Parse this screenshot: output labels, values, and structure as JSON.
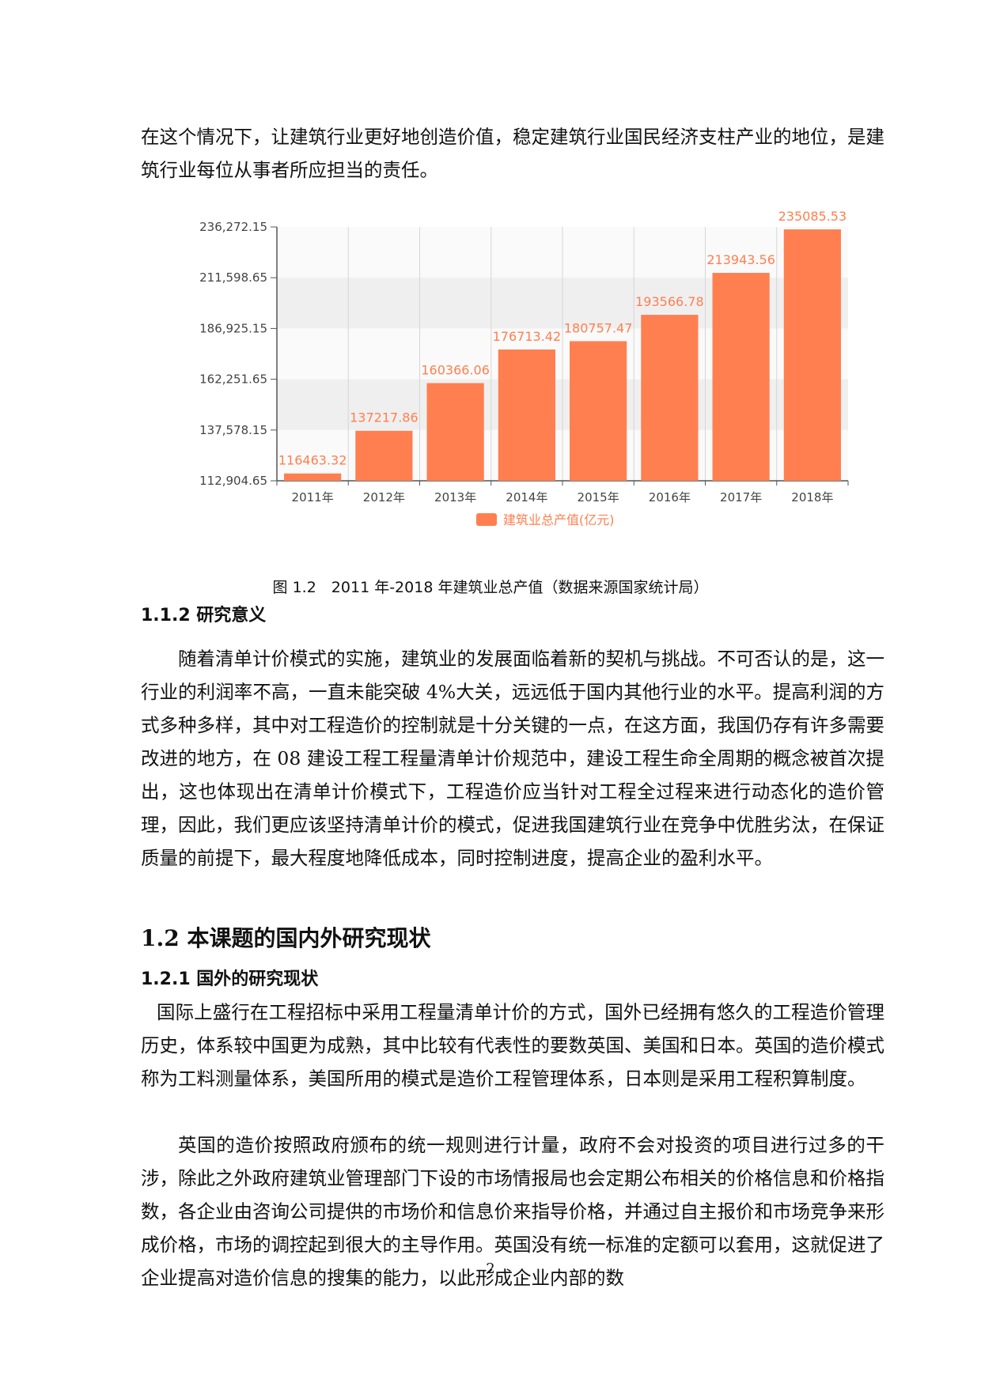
{
  "intro_paragraph": "在这个情况下，让建筑行业更好地创造价值，稳定建筑行业国民经济支柱产业的地位，是建筑行业每位从事者所应担当的责任。",
  "figure_caption": "图 1.2　2011 年-2018 年建筑业总产值（数据来源国家统计局）",
  "section_112": {
    "heading": "1.1.2 研究意义",
    "body": "随着清单计价模式的实施，建筑业的发展面临着新的契机与挑战。不可否认的是，这一行业的利润率不高，一直未能突破 4%大关，远远低于国内其他行业的水平。提高利润的方式多种多样，其中对工程造价的控制就是十分关键的一点，在这方面，我国仍存有许多需要改进的地方，在 08 建设工程工程量清单计价规范中，建设工程生命全周期的概念被首次提出，这也体现出在清单计价模式下，工程造价应当针对工程全过程来进行动态化的造价管理，因此，我们更应该坚持清单计价的模式，促进我国建筑行业在竞争中优胜劣汰，在保证质量的前提下，最大程度地降低成本，同时控制进度，提高企业的盈利水平。"
  },
  "section_12": {
    "heading": "1.2 本课题的国内外研究现状"
  },
  "section_121": {
    "heading": "1.2.1 国外的研究现状",
    "para1": "国际上盛行在工程招标中采用工程量清单计价的方式，国外已经拥有悠久的工程造价管理历史，体系较中国更为成熟，其中比较有代表性的要数英国、美国和日本。英国的造价模式称为工料测量体系，美国所用的模式是造价工程管理体系，日本则是采用工程积算制度。",
    "para2": "英国的造价按照政府颁布的统一规则进行计量，政府不会对投资的项目进行过多的干涉，除此之外政府建筑业管理部门下设的市场情报局也会定期公布相关的价格信息和价格指数，各企业由咨询公司提供的市场价和信息价来指导价格，并通过自主报价和市场竞争来形成价格，市场的调控起到很大的主导作用。英国没有统一标准的定额可以套用，这就促进了企业提高对造价信息的搜集的能力，以此形成企业内部的数"
  },
  "page_number": "2",
  "chart_data": {
    "type": "bar",
    "categories": [
      "2011年",
      "2012年",
      "2013年",
      "2014年",
      "2015年",
      "2016年",
      "2017年",
      "2018年"
    ],
    "series": [
      {
        "name": "建筑业总产值(亿元)",
        "values": [
          116463.32,
          137217.86,
          160366.06,
          176713.42,
          180757.47,
          193566.78,
          213943.56,
          235085.53
        ],
        "labels": [
          "116463.32",
          "137217.86",
          "160366.06",
          "176713.42",
          "180757.47",
          "193566.78",
          "213943.56",
          "235085.53"
        ]
      }
    ],
    "yticks": [
      "112,904.65",
      "137,578.15",
      "162,251.65",
      "186,925.15",
      "211,598.65",
      "236,272.15"
    ],
    "ylim": [
      112904.65,
      236272.15
    ],
    "grid": true,
    "legend": "bottom",
    "colors": {
      "bar": "#FF7F50",
      "label": "#FF7F50",
      "band": "#EFEFEF",
      "axis": "#555555"
    }
  }
}
